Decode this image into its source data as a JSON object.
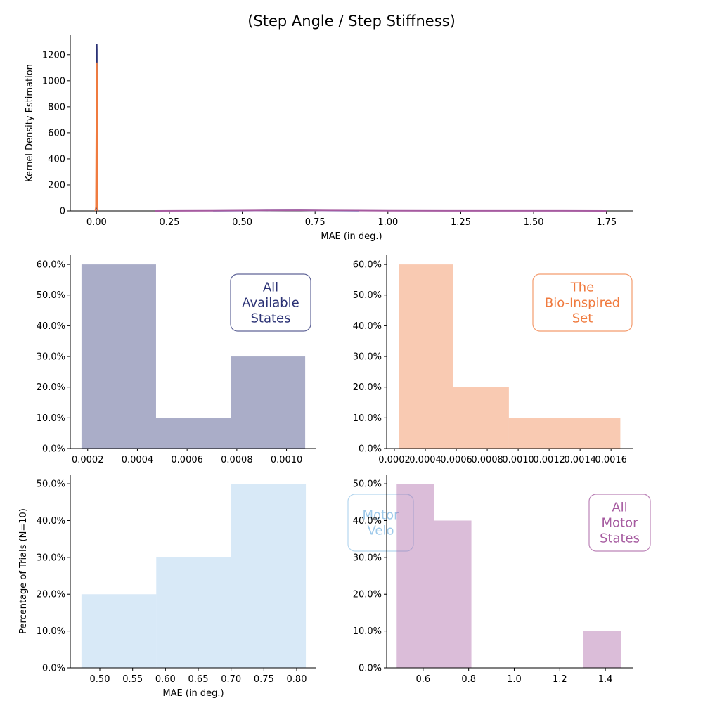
{
  "suptitle": "(Step Angle / Step Stiffness)",
  "colors": {
    "all_available": "#2b3275",
    "bio_inspired": "#f07b3f",
    "motor_velocity": "#9ec9ea",
    "all_motor": "#a65ba0"
  },
  "chart_data": [
    {
      "type": "line",
      "id": "kde",
      "xlabel": "MAE (in deg.)",
      "ylabel": "Kernel Density Estimation",
      "xlim": [
        -0.09,
        1.84
      ],
      "ylim": [
        0,
        1350
      ],
      "xticks": [
        0.0,
        0.25,
        0.5,
        0.75,
        1.0,
        1.25,
        1.5,
        1.75
      ],
      "xtick_labels": [
        "0.00",
        "0.25",
        "0.50",
        "0.75",
        "1.00",
        "1.25",
        "1.50",
        "1.75"
      ],
      "yticks": [
        0,
        200,
        400,
        600,
        800,
        1000,
        1200
      ],
      "ytick_labels": [
        "0",
        "200",
        "400",
        "600",
        "800",
        "1000",
        "1200"
      ],
      "series": [
        {
          "color_key": "all_available",
          "x": [
            -0.003,
            -0.001,
            0.0004,
            0.0008,
            0.0012,
            0.002,
            0.004
          ],
          "y": [
            0,
            30,
            1260,
            1285,
            1240,
            40,
            0
          ]
        },
        {
          "color_key": "bio_inspired",
          "x": [
            -0.004,
            -0.002,
            0.0003,
            0.0009,
            0.0016,
            0.0025,
            0.005
          ],
          "y": [
            0,
            30,
            1100,
            1140,
            1050,
            30,
            0
          ]
        },
        {
          "color_key": "motor_velocity",
          "x": [
            0.4,
            0.5,
            0.6,
            0.65,
            0.7,
            0.8,
            0.9
          ],
          "y": [
            0,
            1.5,
            4,
            5,
            4.5,
            2,
            0
          ]
        },
        {
          "color_key": "all_motor",
          "x": [
            0.2,
            0.4,
            0.6,
            0.7,
            0.8,
            1.0,
            1.2,
            1.4,
            1.6,
            1.75
          ],
          "y": [
            0,
            1.5,
            4,
            4.5,
            3.5,
            1.2,
            0.5,
            0.8,
            0.4,
            0
          ]
        }
      ]
    },
    {
      "type": "bar",
      "id": "hist_all_available",
      "color_key": "all_available",
      "legend": [
        "All",
        "Available",
        "States"
      ],
      "bin_edges": [
        0.000175,
        0.000475,
        0.000775,
        0.001075
      ],
      "values": [
        60,
        10,
        30
      ],
      "xlim": [
        0.00013,
        0.00112
      ],
      "ylim": [
        0,
        63
      ],
      "xticks": [
        0.0002,
        0.0004,
        0.0006,
        0.0008,
        0.001
      ],
      "xtick_labels": [
        "0.0002",
        "0.0004",
        "0.0006",
        "0.0008",
        "0.0010"
      ],
      "yticks": [
        0,
        10,
        20,
        30,
        40,
        50,
        60
      ],
      "ytick_labels": [
        "0.0%",
        "10.0%",
        "20.0%",
        "30.0%",
        "40.0%",
        "50.0%",
        "60.0%"
      ]
    },
    {
      "type": "bar",
      "id": "hist_bio_inspired",
      "color_key": "bio_inspired",
      "legend": [
        "The",
        "Bio-Inspired",
        "Set"
      ],
      "bin_edges": [
        0.00023,
        0.00058,
        0.00094,
        0.0013,
        0.00166
      ],
      "values": [
        60,
        20,
        10,
        10
      ],
      "xlim": [
        0.00015,
        0.00174
      ],
      "ylim": [
        0,
        63
      ],
      "xticks": [
        0.0002,
        0.0004,
        0.0006,
        0.0008,
        0.001,
        0.0012,
        0.0014,
        0.0016
      ],
      "xtick_labels": [
        "0.0002",
        "0.0004",
        "0.0006",
        "0.0008",
        "0.0010",
        "0.0012",
        "0.0014",
        "0.0016"
      ],
      "yticks": [
        0,
        10,
        20,
        30,
        40,
        50,
        60
      ],
      "ytick_labels": [
        "0.0%",
        "10.0%",
        "20.0%",
        "30.0%",
        "40.0%",
        "50.0%",
        "60.0%"
      ]
    },
    {
      "type": "bar",
      "id": "hist_motor_velocity",
      "color_key": "motor_velocity",
      "legend": [
        "Motor",
        "Velo"
      ],
      "xlabel": "MAE (in deg.)",
      "ylabel": "Percentage of Trials (N=10)",
      "bin_edges": [
        0.472,
        0.586,
        0.7,
        0.814
      ],
      "values": [
        20,
        30,
        50
      ],
      "xlim": [
        0.455,
        0.83
      ],
      "ylim": [
        0,
        52.5
      ],
      "xticks": [
        0.5,
        0.55,
        0.6,
        0.65,
        0.7,
        0.75,
        0.8
      ],
      "xtick_labels": [
        "0.50",
        "0.55",
        "0.60",
        "0.65",
        "0.70",
        "0.75",
        "0.80"
      ],
      "yticks": [
        0,
        10,
        20,
        30,
        40,
        50
      ],
      "ytick_labels": [
        "0.0%",
        "10.0%",
        "20.0%",
        "30.0%",
        "40.0%",
        "50.0%"
      ]
    },
    {
      "type": "bar",
      "id": "hist_all_motor",
      "color_key": "all_motor",
      "legend": [
        "All",
        "Motor",
        "States"
      ],
      "bin_edges": [
        0.484,
        0.648,
        0.812,
        0.976,
        1.14,
        1.304,
        1.468
      ],
      "values": [
        50,
        40,
        0,
        0,
        0,
        10
      ],
      "xlim": [
        0.44,
        1.52
      ],
      "ylim": [
        0,
        52.5
      ],
      "xticks": [
        0.6,
        0.8,
        1.0,
        1.2,
        1.4
      ],
      "xtick_labels": [
        "0.6",
        "0.8",
        "1.0",
        "1.2",
        "1.4"
      ],
      "yticks": [
        0,
        10,
        20,
        30,
        40,
        50
      ],
      "ytick_labels": [
        "0.0%",
        "10.0%",
        "20.0%",
        "30.0%",
        "40.0%",
        "50.0%"
      ]
    }
  ]
}
